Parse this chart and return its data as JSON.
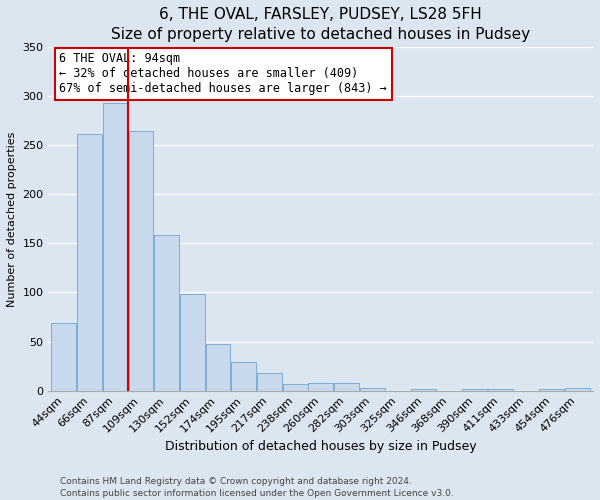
{
  "title": "6, THE OVAL, FARSLEY, PUDSEY, LS28 5FH",
  "subtitle": "Size of property relative to detached houses in Pudsey",
  "xlabel": "Distribution of detached houses by size in Pudsey",
  "ylabel": "Number of detached properties",
  "bin_labels": [
    "44sqm",
    "66sqm",
    "87sqm",
    "109sqm",
    "130sqm",
    "152sqm",
    "174sqm",
    "195sqm",
    "217sqm",
    "238sqm",
    "260sqm",
    "282sqm",
    "303sqm",
    "325sqm",
    "346sqm",
    "368sqm",
    "390sqm",
    "411sqm",
    "433sqm",
    "454sqm",
    "476sqm"
  ],
  "bar_values": [
    69,
    261,
    293,
    265,
    159,
    98,
    48,
    29,
    18,
    7,
    8,
    8,
    3,
    0,
    2,
    0,
    2,
    2,
    0,
    2,
    3
  ],
  "bar_color": "#c9d9ed",
  "bar_edge_color": "#7aaed6",
  "vline_color": "#cc0000",
  "annotation_title": "6 THE OVAL: 94sqm",
  "annotation_line1": "← 32% of detached houses are smaller (409)",
  "annotation_line2": "67% of semi-detached houses are larger (843) →",
  "annotation_box_color": "#ffffff",
  "annotation_box_edge": "#cc0000",
  "ylim": [
    0,
    350
  ],
  "yticks": [
    0,
    50,
    100,
    150,
    200,
    250,
    300,
    350
  ],
  "footer1": "Contains HM Land Registry data © Crown copyright and database right 2024.",
  "footer2": "Contains public sector information licensed under the Open Government Licence v3.0.",
  "bg_color": "#dce6f0",
  "plot_bg_color": "#dce6f0",
  "grid_color": "#ffffff",
  "spine_color": "#aaaaaa",
  "title_fontsize": 11,
  "subtitle_fontsize": 10,
  "xlabel_fontsize": 9,
  "ylabel_fontsize": 8,
  "tick_fontsize": 8,
  "ann_fontsize": 8.5,
  "footer_fontsize": 6.5
}
